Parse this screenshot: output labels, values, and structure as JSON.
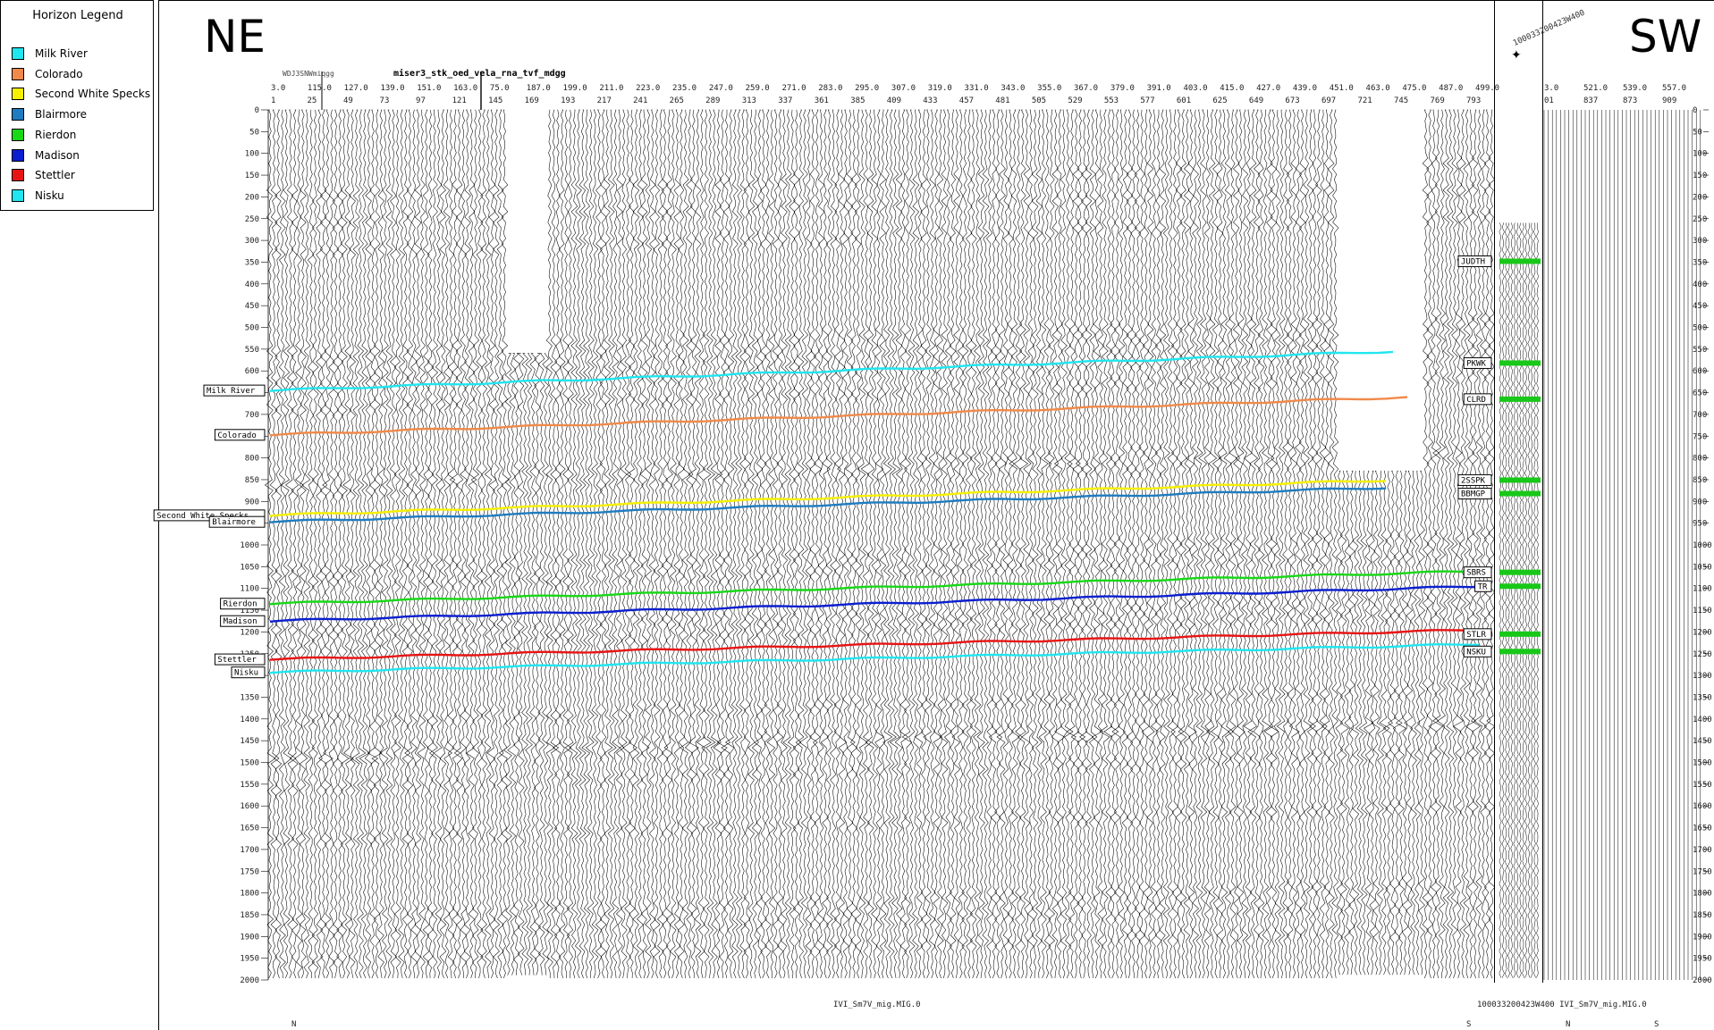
{
  "legend": {
    "title": "Horizon Legend",
    "items": [
      {
        "label": "Milk River",
        "color": "#20e6f0"
      },
      {
        "label": "Colorado",
        "color": "#f08a4a"
      },
      {
        "label": "Second White Specks",
        "color": "#f6f000"
      },
      {
        "label": "Blairmore",
        "color": "#1f7cc0"
      },
      {
        "label": "Rierdon",
        "color": "#18d818"
      },
      {
        "label": "Madison",
        "color": "#0b1fd0"
      },
      {
        "label": "Stettler",
        "color": "#e81414"
      },
      {
        "label": "Nisku",
        "color": "#20e6f0"
      }
    ]
  },
  "directions": {
    "left": "NE",
    "right": "SW"
  },
  "line_title": "miser3_stk_oed_vela_rna_tvf_mdgg",
  "small_title": "WDJ3SNWmiqgg",
  "well": {
    "name": "100033200423W400",
    "marker_icon": "star-icon"
  },
  "shot_labels": [
    "3.0",
    "115.0",
    "127.0",
    "139.0",
    "151.0",
    "163.0",
    "75.0",
    "187.0",
    "199.0",
    "211.0",
    "223.0",
    "235.0",
    "247.0",
    "259.0",
    "271.0",
    "283.0",
    "295.0",
    "307.0",
    "319.0",
    "331.0",
    "343.0",
    "355.0",
    "367.0",
    "379.0",
    "391.0",
    "403.0",
    "415.0",
    "427.0",
    "439.0",
    "451.0",
    "463.0",
    "475.0",
    "487.0",
    "499.0"
  ],
  "trace_labels": [
    "1",
    "25",
    "49",
    "73",
    "97",
    "121",
    "145",
    "169",
    "193",
    "217",
    "241",
    "265",
    "289",
    "313",
    "337",
    "361",
    "385",
    "409",
    "433",
    "457",
    "481",
    "505",
    "529",
    "553",
    "577",
    "601",
    "625",
    "649",
    "673",
    "697",
    "721",
    "745",
    "769",
    "793"
  ],
  "right_shot_labels": [
    "3.0",
    "521.0",
    "539.0",
    "557.0"
  ],
  "right_trace_labels": [
    "01",
    "837",
    "873",
    "909"
  ],
  "time_axis": {
    "min": 0,
    "max": 2000,
    "step": 50
  },
  "left_horizon_labels": [
    {
      "label": "Milk River",
      "time": 645
    },
    {
      "label": "Colorado",
      "time": 747
    },
    {
      "label": "Second White Specks",
      "time": 932
    },
    {
      "label": "Blairmore",
      "time": 947
    },
    {
      "label": "Rierdon",
      "time": 1135
    },
    {
      "label": "Madison",
      "time": 1175
    },
    {
      "label": "Stettler",
      "time": 1263
    },
    {
      "label": "Nisku",
      "time": 1293
    }
  ],
  "well_tops": [
    {
      "label": "JUDTH",
      "time": 348
    },
    {
      "label": "PKWK",
      "time": 582
    },
    {
      "label": "CLRD",
      "time": 665
    },
    {
      "label": "2SSPK",
      "time": 851
    },
    {
      "label": "BBMGP",
      "time": 882
    },
    {
      "label": "SBRS",
      "time": 1063
    },
    {
      "label": "TR",
      "time": 1095
    },
    {
      "label": "STLR",
      "time": 1205
    },
    {
      "label": "NSKU",
      "time": 1245
    }
  ],
  "footer": {
    "left_label": "IVI_Sm7V_mig.MIG.0",
    "right_label": "100033200423W400 IVI_Sm7V_mig.MIG.0",
    "n_left": "N",
    "s_mid": "S",
    "n_right": "N",
    "s_right": "S"
  }
}
